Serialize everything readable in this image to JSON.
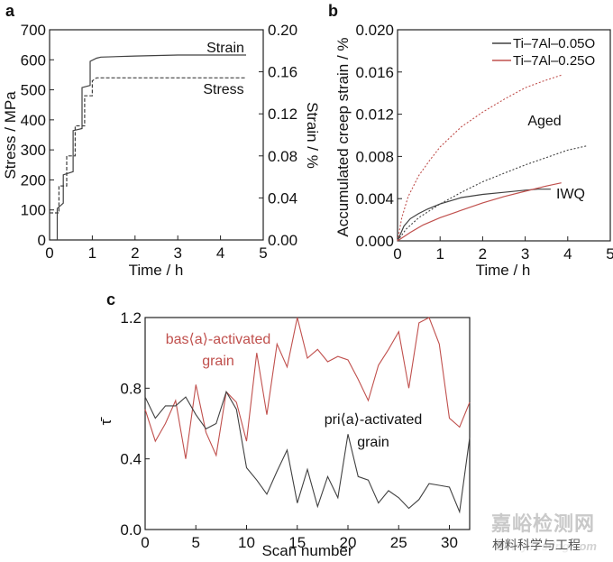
{
  "colors": {
    "black_series": "#404040",
    "red_series": "#c0504d",
    "axis": "#222222"
  },
  "chart_data": [
    {
      "panel": "a",
      "type": "line",
      "xlabel": "Time / h",
      "ylabel_left": "Stress / MPa",
      "ylabel_right": "Strain / %",
      "xlim": [
        0,
        5
      ],
      "ylim_left": [
        0,
        700
      ],
      "ylim_right": [
        0,
        0.2
      ],
      "xticks": [
        0,
        1,
        2,
        3,
        4,
        5
      ],
      "yticks_left": [
        0,
        100,
        200,
        300,
        400,
        500,
        600,
        700
      ],
      "yticks_right": [
        "0.00",
        "0.04",
        "0.08",
        "0.12",
        "0.16",
        "0.20"
      ],
      "series": [
        {
          "name": "Strain",
          "axis": "right",
          "style": "solid",
          "x": [
            0.12,
            0.18,
            0.18,
            0.32,
            0.32,
            0.55,
            0.55,
            0.76,
            0.76,
            0.95,
            0.95,
            1.1,
            1.2,
            2.0,
            3.0,
            4.0,
            4.6
          ],
          "y": [
            0.0,
            0.0,
            0.03,
            0.035,
            0.062,
            0.065,
            0.104,
            0.106,
            0.145,
            0.147,
            0.17,
            0.173,
            0.174,
            0.175,
            0.176,
            0.176,
            0.176
          ]
        },
        {
          "name": "Stress",
          "axis": "left",
          "style": "dashed",
          "x": [
            0.0,
            0.22,
            0.22,
            0.4,
            0.4,
            0.6,
            0.6,
            0.82,
            0.82,
            1.0,
            1.0,
            1.1,
            2.0,
            3.0,
            4.0,
            4.6
          ],
          "y": [
            90,
            90,
            180,
            180,
            280,
            280,
            380,
            380,
            480,
            480,
            530,
            540,
            540,
            540,
            540,
            540
          ]
        }
      ]
    },
    {
      "panel": "b",
      "type": "line",
      "xlabel": "Time / h",
      "ylabel": "Accumulated creep strain / %",
      "xlim": [
        0,
        5
      ],
      "ylim": [
        0,
        0.02
      ],
      "xticks": [
        0,
        1,
        2,
        3,
        4,
        5
      ],
      "yticks": [
        "0.000",
        "0.004",
        "0.008",
        "0.012",
        "0.016",
        "0.020"
      ],
      "legend": [
        "Ti–7Al–0.05O",
        "Ti–7Al–0.25O"
      ],
      "annotations": [
        "Aged",
        "IWQ"
      ],
      "series": [
        {
          "name": "Ti-7Al-0.05O IWQ",
          "color": "black",
          "style": "solid",
          "x": [
            0,
            0.15,
            0.3,
            0.5,
            0.7,
            1.0,
            1.5,
            2.0,
            2.5,
            3.0,
            3.3,
            3.6
          ],
          "y": [
            0,
            0.0014,
            0.0021,
            0.0026,
            0.003,
            0.0035,
            0.0041,
            0.0044,
            0.0046,
            0.0048,
            0.0049,
            0.0049
          ]
        },
        {
          "name": "Ti-7Al-0.25O IWQ",
          "color": "red",
          "style": "solid",
          "x": [
            0,
            0.3,
            0.6,
            1.0,
            1.5,
            2.0,
            2.5,
            3.0,
            3.5,
            3.85
          ],
          "y": [
            0,
            0.0008,
            0.0015,
            0.0022,
            0.0029,
            0.0036,
            0.0042,
            0.0047,
            0.0052,
            0.0055
          ]
        },
        {
          "name": "Ti-7Al-0.05O Aged",
          "color": "black",
          "style": "dotted",
          "x": [
            0,
            0.2,
            0.5,
            1.0,
            1.5,
            2.0,
            2.5,
            3.0,
            3.5,
            4.0,
            4.45
          ],
          "y": [
            0,
            0.0011,
            0.0022,
            0.0035,
            0.0046,
            0.0056,
            0.0064,
            0.0072,
            0.0079,
            0.0086,
            0.009
          ]
        },
        {
          "name": "Ti-7Al-0.25O Aged",
          "color": "red",
          "style": "dotted",
          "x": [
            0,
            0.1,
            0.25,
            0.5,
            0.75,
            1.0,
            1.5,
            2.0,
            2.5,
            3.0,
            3.4,
            3.85
          ],
          "y": [
            0,
            0.0022,
            0.0042,
            0.0062,
            0.0076,
            0.0089,
            0.0108,
            0.0122,
            0.0134,
            0.0145,
            0.0151,
            0.0157
          ]
        }
      ]
    },
    {
      "panel": "c",
      "type": "line",
      "xlabel": "Scan number",
      "ylabel": "τ̄",
      "xlim": [
        0,
        32
      ],
      "ylim": [
        0,
        1.2
      ],
      "xticks": [
        0,
        5,
        10,
        15,
        20,
        25,
        30
      ],
      "yticks": [
        "0.0",
        "0.4",
        "0.8",
        "1.2"
      ],
      "annotations": [
        "bas⟨a⟩-activated",
        "grain",
        "pri⟨a⟩-activated",
        "grain"
      ],
      "series": [
        {
          "name": "bas<a>-activated grain",
          "color": "red",
          "x": [
            0,
            1,
            2,
            3,
            4,
            5,
            6,
            7,
            8,
            9,
            10,
            11,
            12,
            13,
            14,
            15,
            16,
            17,
            18,
            19,
            20,
            21,
            22,
            23,
            24,
            25,
            26,
            27,
            28,
            29,
            30,
            31,
            32
          ],
          "y": [
            0.68,
            0.5,
            0.6,
            0.73,
            0.4,
            0.82,
            0.55,
            0.42,
            0.78,
            0.72,
            0.5,
            1.0,
            0.65,
            1.05,
            0.92,
            1.2,
            0.97,
            1.02,
            0.95,
            0.98,
            0.96,
            0.85,
            0.73,
            0.93,
            1.02,
            1.12,
            0.8,
            1.17,
            1.2,
            1.05,
            0.63,
            0.58,
            0.72
          ]
        },
        {
          "name": "pri<a>-activated grain",
          "color": "black",
          "x": [
            0,
            1,
            2,
            3,
            4,
            5,
            6,
            7,
            8,
            9,
            10,
            11,
            12,
            13,
            14,
            15,
            16,
            17,
            18,
            19,
            20,
            21,
            22,
            23,
            24,
            25,
            26,
            27,
            28,
            29,
            30,
            31,
            32
          ],
          "y": [
            0.75,
            0.63,
            0.7,
            0.7,
            0.75,
            0.65,
            0.57,
            0.6,
            0.78,
            0.68,
            0.35,
            0.28,
            0.2,
            0.33,
            0.45,
            0.15,
            0.34,
            0.13,
            0.3,
            0.18,
            0.54,
            0.3,
            0.28,
            0.15,
            0.22,
            0.18,
            0.12,
            0.17,
            0.26,
            0.25,
            0.24,
            0.1,
            0.52
          ]
        }
      ]
    }
  ],
  "panel_labels": [
    "a",
    "b",
    "c"
  ],
  "panel_a_labels": {
    "strain": "Strain",
    "stress": "Stress"
  },
  "watermark": {
    "brand": "嘉峪检测网",
    "site": "AnyTesting.com",
    "cn": "材料科学与工程"
  }
}
